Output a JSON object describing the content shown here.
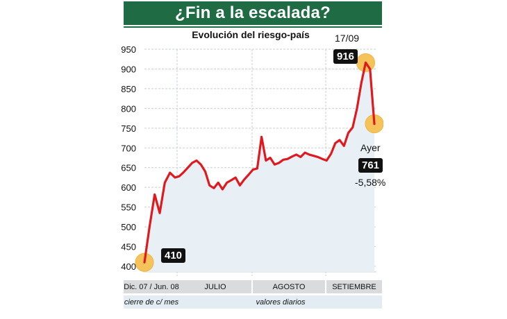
{
  "header": {
    "title": "¿Fin a la escalada?",
    "subtitle": "Evolución del riesgo-país"
  },
  "x_axis": {
    "sections": [
      "Dic. 07 / Jun. 08",
      "JULIO",
      "AGOSTO",
      "SETIEMBRE"
    ],
    "notes": [
      "cierre de c/ mes",
      "valores diarios"
    ]
  },
  "annotations": {
    "start_value": "410",
    "peak_date": "17/09",
    "peak_value": "916",
    "last_label": "Ayer",
    "last_value": "761",
    "last_change": "-5,58%"
  },
  "colors": {
    "title_bar": "#1f6b43",
    "line": "#e0191f",
    "area": "#e8f0f5",
    "marker": "#f6c35a"
  },
  "chart_data": {
    "type": "line",
    "title": "Evolución del riesgo-país",
    "ylim": [
      400,
      950
    ],
    "yticks": [
      400,
      450,
      500,
      550,
      600,
      650,
      700,
      750,
      800,
      850,
      900,
      950
    ],
    "grid": true,
    "series": [
      {
        "values": [
          410,
          500,
          582,
          535,
          612,
          637,
          625,
          628,
          638,
          650,
          662,
          668,
          658,
          640,
          605,
          598,
          612,
          595,
          612,
          618,
          625,
          605,
          620,
          632,
          645,
          648,
          728,
          668,
          675,
          658,
          662,
          670,
          672,
          678,
          683,
          677,
          688,
          683,
          680,
          677,
          672,
          668,
          685,
          712,
          720,
          705,
          738,
          752,
          800,
          865,
          916,
          900,
          761
        ]
      }
    ]
  }
}
